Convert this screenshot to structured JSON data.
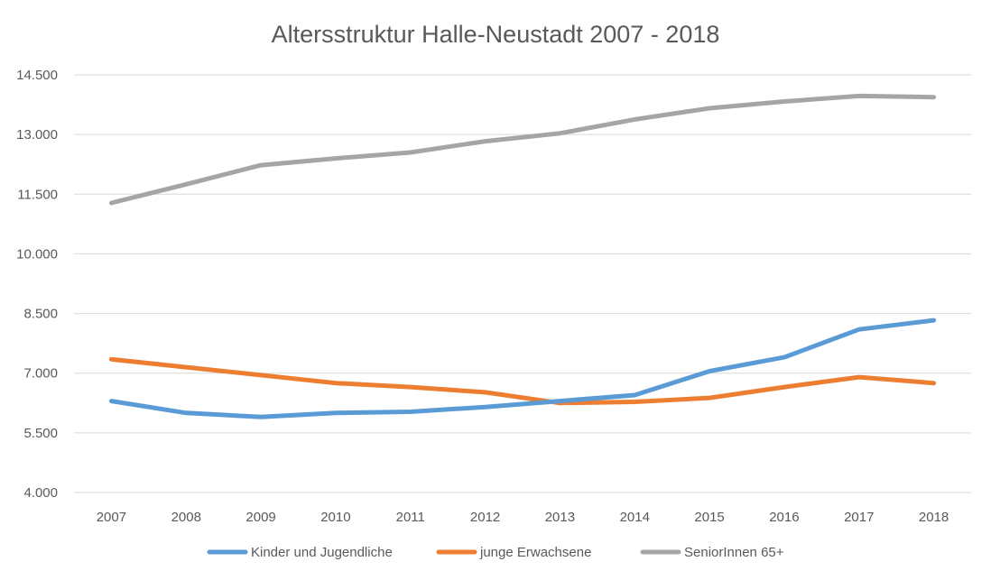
{
  "chart_data": {
    "type": "line",
    "title": "Altersstruktur Halle-Neustadt 2007 - 2018",
    "xlabel": "",
    "ylabel": "",
    "categories": [
      "2007",
      "2008",
      "2009",
      "2010",
      "2011",
      "2012",
      "2013",
      "2014",
      "2015",
      "2016",
      "2017",
      "2018"
    ],
    "ylim": [
      4000,
      14500
    ],
    "yticks": [
      4000,
      5500,
      7000,
      8500,
      10000,
      11500,
      13000,
      14500
    ],
    "ytick_labels": [
      "4.000",
      "5.500",
      "7.000",
      "8.500",
      "10.000",
      "11.500",
      "13.000",
      "14.500"
    ],
    "grid": true,
    "legend_position": "bottom",
    "series": [
      {
        "name": "Kinder und Jugendliche",
        "color": "#5B9BD5",
        "values": [
          6300,
          6000,
          5900,
          6000,
          6030,
          6150,
          6300,
          6450,
          7050,
          7400,
          8100,
          8330
        ]
      },
      {
        "name": "junge Erwachsene",
        "color": "#ED7D31",
        "values": [
          7350,
          7150,
          6950,
          6750,
          6650,
          6520,
          6250,
          6280,
          6380,
          6650,
          6900,
          6750
        ]
      },
      {
        "name": "SeniorInnen 65+",
        "color": "#A5A5A5",
        "values": [
          11280,
          11750,
          12230,
          12400,
          12550,
          12830,
          13030,
          13380,
          13660,
          13830,
          13970,
          13940
        ]
      }
    ]
  }
}
